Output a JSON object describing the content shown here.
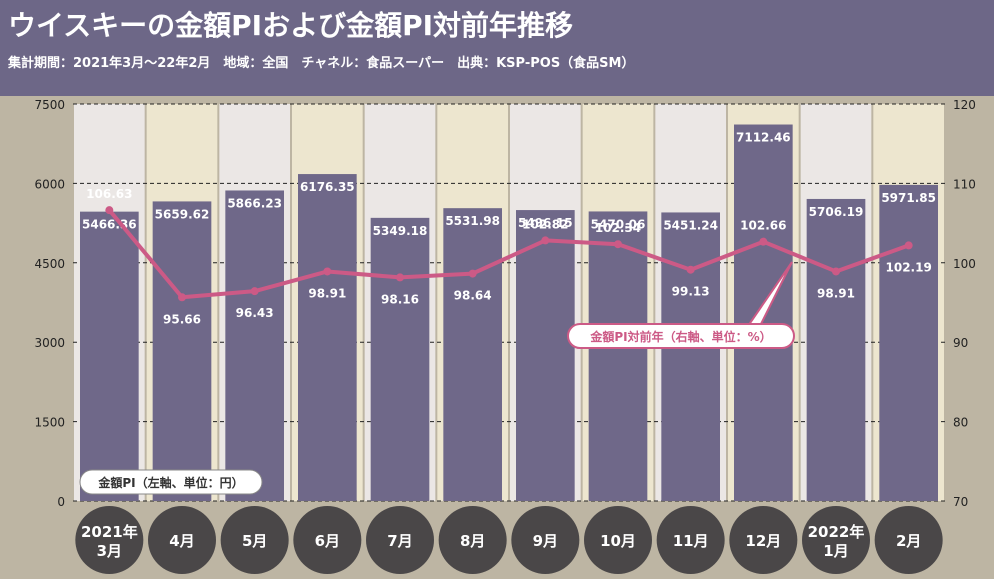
{
  "header": {
    "title": "ウイスキーの金額PIおよび金額PI対前年推移",
    "subtitle": "集計期間：2021年3月～22年2月　地域：全国　チャネル：食品スーパー　出典：KSP-POS（食品SM）"
  },
  "colors": {
    "header_bg": "#6d6787",
    "outer_bg": "#bdb5a3",
    "panel_light": "#ebe7e5",
    "panel_cream": "#ede6cf",
    "bar": "#6f6889",
    "line": "#cc5a86",
    "circle": "#4a4748"
  },
  "chart_data": {
    "type": "bar",
    "categories": [
      "2021年3月",
      "4月",
      "5月",
      "6月",
      "7月",
      "8月",
      "9月",
      "10月",
      "11月",
      "12月",
      "2022年1月",
      "2月"
    ],
    "category_lines": [
      [
        "2021年",
        "3月"
      ],
      [
        "4月"
      ],
      [
        "5月"
      ],
      [
        "6月"
      ],
      [
        "7月"
      ],
      [
        "8月"
      ],
      [
        "9月"
      ],
      [
        "10月"
      ],
      [
        "11月"
      ],
      [
        "12月"
      ],
      [
        "2022年",
        "1月"
      ],
      [
        "2月"
      ]
    ],
    "series": [
      {
        "name": "金額PI（左軸、単位：円）",
        "axis": "left",
        "type": "bar",
        "values": [
          5466.36,
          5659.62,
          5866.23,
          6176.35,
          5349.18,
          5531.98,
          5496.15,
          5470.06,
          5451.24,
          7112.46,
          5706.19,
          5971.85
        ],
        "labels": [
          "5466.36",
          "5659.62",
          "5866.23",
          "6176.35",
          "5349.18",
          "5531.98",
          "5496.15",
          "5470.06",
          "5451.24",
          "7112.46",
          "5706.19",
          "5971.85"
        ]
      },
      {
        "name": "金額PI対前年（右軸、単位：%）",
        "axis": "right",
        "type": "line",
        "values": [
          106.63,
          95.66,
          96.43,
          98.91,
          98.16,
          98.64,
          102.82,
          102.34,
          99.13,
          102.66,
          98.91,
          102.19
        ],
        "labels": [
          "106.63",
          "95.66",
          "96.43",
          "98.91",
          "98.16",
          "98.64",
          "102.82",
          "102.34",
          "99.13",
          "102.66",
          "98.91",
          "102.19"
        ]
      }
    ],
    "left_axis": {
      "min": 0,
      "max": 7500,
      "ticks": [
        "0",
        "1500",
        "3000",
        "4500",
        "6000",
        "7500"
      ]
    },
    "right_axis": {
      "min": 70,
      "max": 120,
      "ticks": [
        "70",
        "80",
        "90",
        "100",
        "110",
        "120"
      ]
    },
    "legend_bar_label": "金額PI（左軸、単位：円）",
    "legend_line_label": "金額PI対前年（右軸、単位：%）",
    "gridlines": "dashed"
  }
}
